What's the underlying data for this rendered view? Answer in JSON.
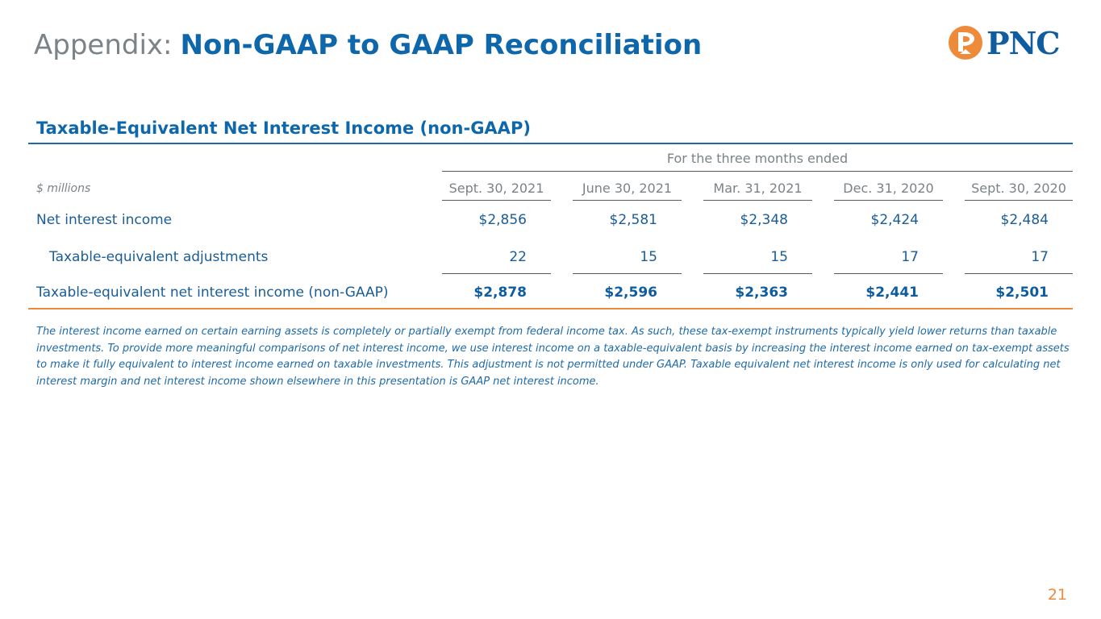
{
  "header": {
    "title_prefix": "Appendix:",
    "title_main": "Non-GAAP to GAAP Reconciliation",
    "logo_text": "PNC",
    "logo_mark": "pnc-logo-icon",
    "brand_blue": "#0f67ab",
    "brand_orange": "#ee8b3a"
  },
  "section": {
    "title": "Taxable-Equivalent Net Interest Income (non-GAAP)"
  },
  "table": {
    "period_header": "For the three months ended",
    "units_label": "$ millions",
    "columns": [
      "Sept. 30, 2021",
      "June 30, 2021",
      "Mar. 31, 2021",
      "Dec. 31, 2020",
      "Sept. 30, 2020"
    ],
    "rows": [
      {
        "label": "Net interest income",
        "values": [
          "$2,856",
          "$2,581",
          "$2,348",
          "$2,424",
          "$2,484"
        ],
        "bold": false,
        "indent": false
      },
      {
        "label": "Taxable-equivalent adjustments",
        "values": [
          "22",
          "15",
          "15",
          "17",
          "17"
        ],
        "bold": false,
        "indent": true
      },
      {
        "label": "Taxable-equivalent net interest income (non-GAAP)",
        "values": [
          "$2,878",
          "$2,596",
          "$2,363",
          "$2,441",
          "$2,501"
        ],
        "bold": true,
        "indent": false
      }
    ]
  },
  "footnote": "The interest income earned on certain earning assets is completely or partially exempt from federal income tax. As such, these tax-exempt instruments typically yield lower returns than taxable investments. To provide more meaningful comparisons of net interest income, we use interest income on a taxable-equivalent basis by increasing the interest income earned on tax-exempt assets to make it fully equivalent to interest income earned on taxable investments. This adjustment is not permitted under GAAP. Taxable equivalent net interest income is only used for calculating net interest margin and net interest income shown elsewhere in this presentation is GAAP net interest income.",
  "page_number": "21"
}
